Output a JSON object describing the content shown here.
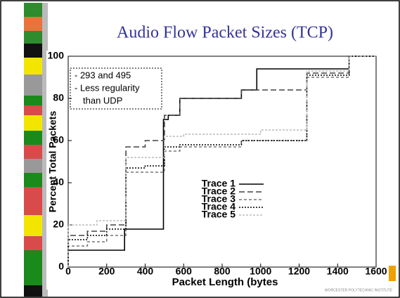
{
  "chart_data": {
    "type": "line",
    "step": "post",
    "title": "Audio Flow Packet Sizes (TCP)",
    "xlabel": "Packet Length (bytes",
    "ylabel": "Percent Total Packets",
    "annotation": [
      "- 293 and 495",
      "- Less regularity",
      "than UDP"
    ],
    "footer": "WORCESTER POLYTECHNIC INSTITUTE",
    "xlim": [
      0,
      1600
    ],
    "ylim": [
      0,
      100
    ],
    "xticks": [
      0,
      200,
      400,
      600,
      800,
      1000,
      1200,
      1400,
      1600
    ],
    "yticks": [
      0,
      20,
      40,
      60,
      80,
      100
    ],
    "series": [
      {
        "name": "Trace 1",
        "color": "#000000",
        "dash": "none",
        "x": [
          0,
          293,
          495,
          520,
          580,
          900,
          980,
          1460
        ],
        "values": [
          8,
          18,
          70,
          72,
          80,
          84,
          94,
          100
        ]
      },
      {
        "name": "Trace 2",
        "color": "#444444",
        "dash": "8 4",
        "x": [
          0,
          100,
          200,
          300,
          400,
          500,
          580,
          900,
          1240,
          1460
        ],
        "values": [
          15,
          17,
          20,
          57,
          60,
          72,
          80,
          84,
          92,
          100
        ]
      },
      {
        "name": "Trace 3",
        "color": "#777777",
        "dash": "4 3",
        "x": [
          0,
          100,
          200,
          300,
          500,
          580,
          900,
          1240,
          1460
        ],
        "values": [
          10,
          12,
          15,
          45,
          55,
          57,
          60,
          90,
          100
        ]
      },
      {
        "name": "Trace 4",
        "color": "#000000",
        "dash": "2 2",
        "x": [
          0,
          100,
          200,
          300,
          400,
          500,
          580,
          900,
          1240,
          1460
        ],
        "values": [
          13,
          15,
          18,
          47,
          48,
          57,
          58,
          60,
          91,
          100
        ]
      },
      {
        "name": "Trace 5",
        "color": "#bbbbbb",
        "dash": "3 2",
        "x": [
          0,
          150,
          300,
          500,
          600,
          1000,
          1240,
          1460
        ],
        "values": [
          20,
          22,
          52,
          62,
          63,
          65,
          93,
          100
        ]
      }
    ]
  }
}
